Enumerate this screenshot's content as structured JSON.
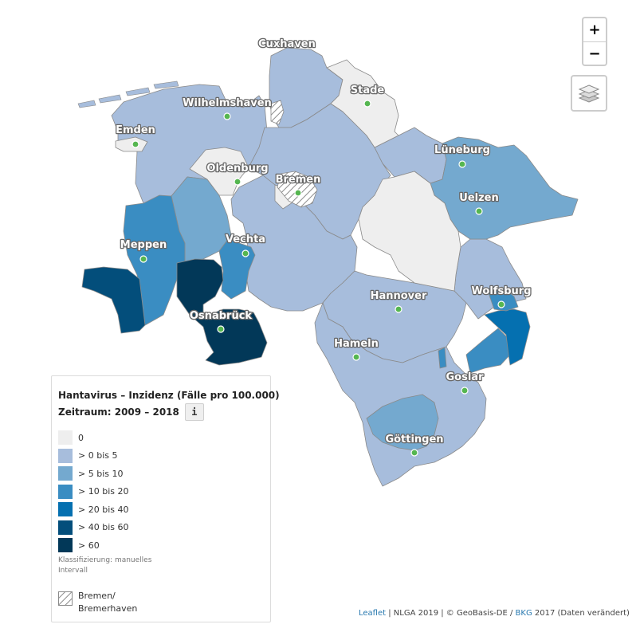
{
  "map": {
    "cities": [
      "Cuxhaven",
      "Stade",
      "Wilhelmshaven",
      "Emden",
      "Lüneburg",
      "Oldenburg",
      "Bremen",
      "Uelzen",
      "Meppen",
      "Vechta",
      "Wolfsburg",
      "Hannover",
      "Osnabrück",
      "Hameln",
      "Goslar",
      "Göttingen"
    ]
  },
  "controls": {
    "zoom_in": "+",
    "zoom_out": "−",
    "layers_icon": "layers-icon"
  },
  "legend": {
    "title": "Hantavirus – Inzidenz (Fälle pro 100.000)",
    "period": "Zeitraum: 2009 – 2018",
    "info_button": "i",
    "classes": [
      {
        "label": "0",
        "color": "#eeeeee"
      },
      {
        "label": "> 0 bis 5",
        "color": "#a7bddc"
      },
      {
        "label": "> 5 bis 10",
        "color": "#74a9cf"
      },
      {
        "label": "> 10 bis 20",
        "color": "#3a8dc2"
      },
      {
        "label": "> 20 bis 40",
        "color": "#0570b0"
      },
      {
        "label": "> 40 bis 60",
        "color": "#034e7b"
      },
      {
        "label": "> 60",
        "color": "#023858"
      }
    ],
    "classification_note": "Klassifizierung: manuelles Intervall",
    "hatch_label": "Bremen/ Bremerhaven"
  },
  "attribution": {
    "leaflet": "Leaflet",
    "nlga": " | NLGA 2019 | © GeoBasis-DE / ",
    "bkg": "BKG",
    "rest": " 2017 (Daten verändert)"
  }
}
